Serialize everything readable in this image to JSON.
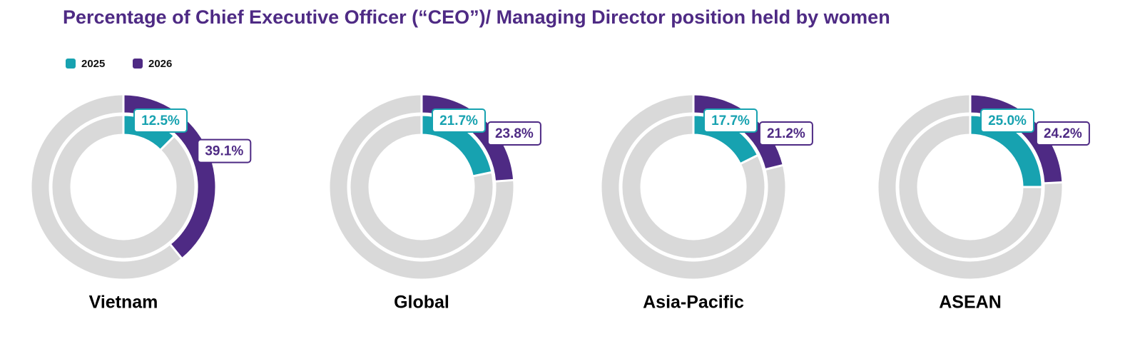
{
  "chart_data": {
    "type": "nested-donut",
    "title": "Percentage of Chief Executive Officer (“CEO”)/ Managing Director position held by women",
    "categories": [
      "Vietnam",
      "Global",
      "Asia-Pacific",
      "ASEAN"
    ],
    "ylim": [
      0,
      100
    ],
    "track_color": "#d9d9d9",
    "series": [
      {
        "name": "2025",
        "color": "#17a2b0",
        "values": [
          12.5,
          21.7,
          17.7,
          25.0
        ],
        "value_labels": [
          "12.5%",
          "21.7%",
          "17.7%",
          "25.0%"
        ]
      },
      {
        "name": "2026",
        "color": "#4e2a84",
        "values": [
          39.1,
          23.8,
          21.2,
          24.2
        ],
        "value_labels": [
          "39.1%",
          "23.8%",
          "21.2%",
          "24.2%"
        ]
      }
    ]
  }
}
